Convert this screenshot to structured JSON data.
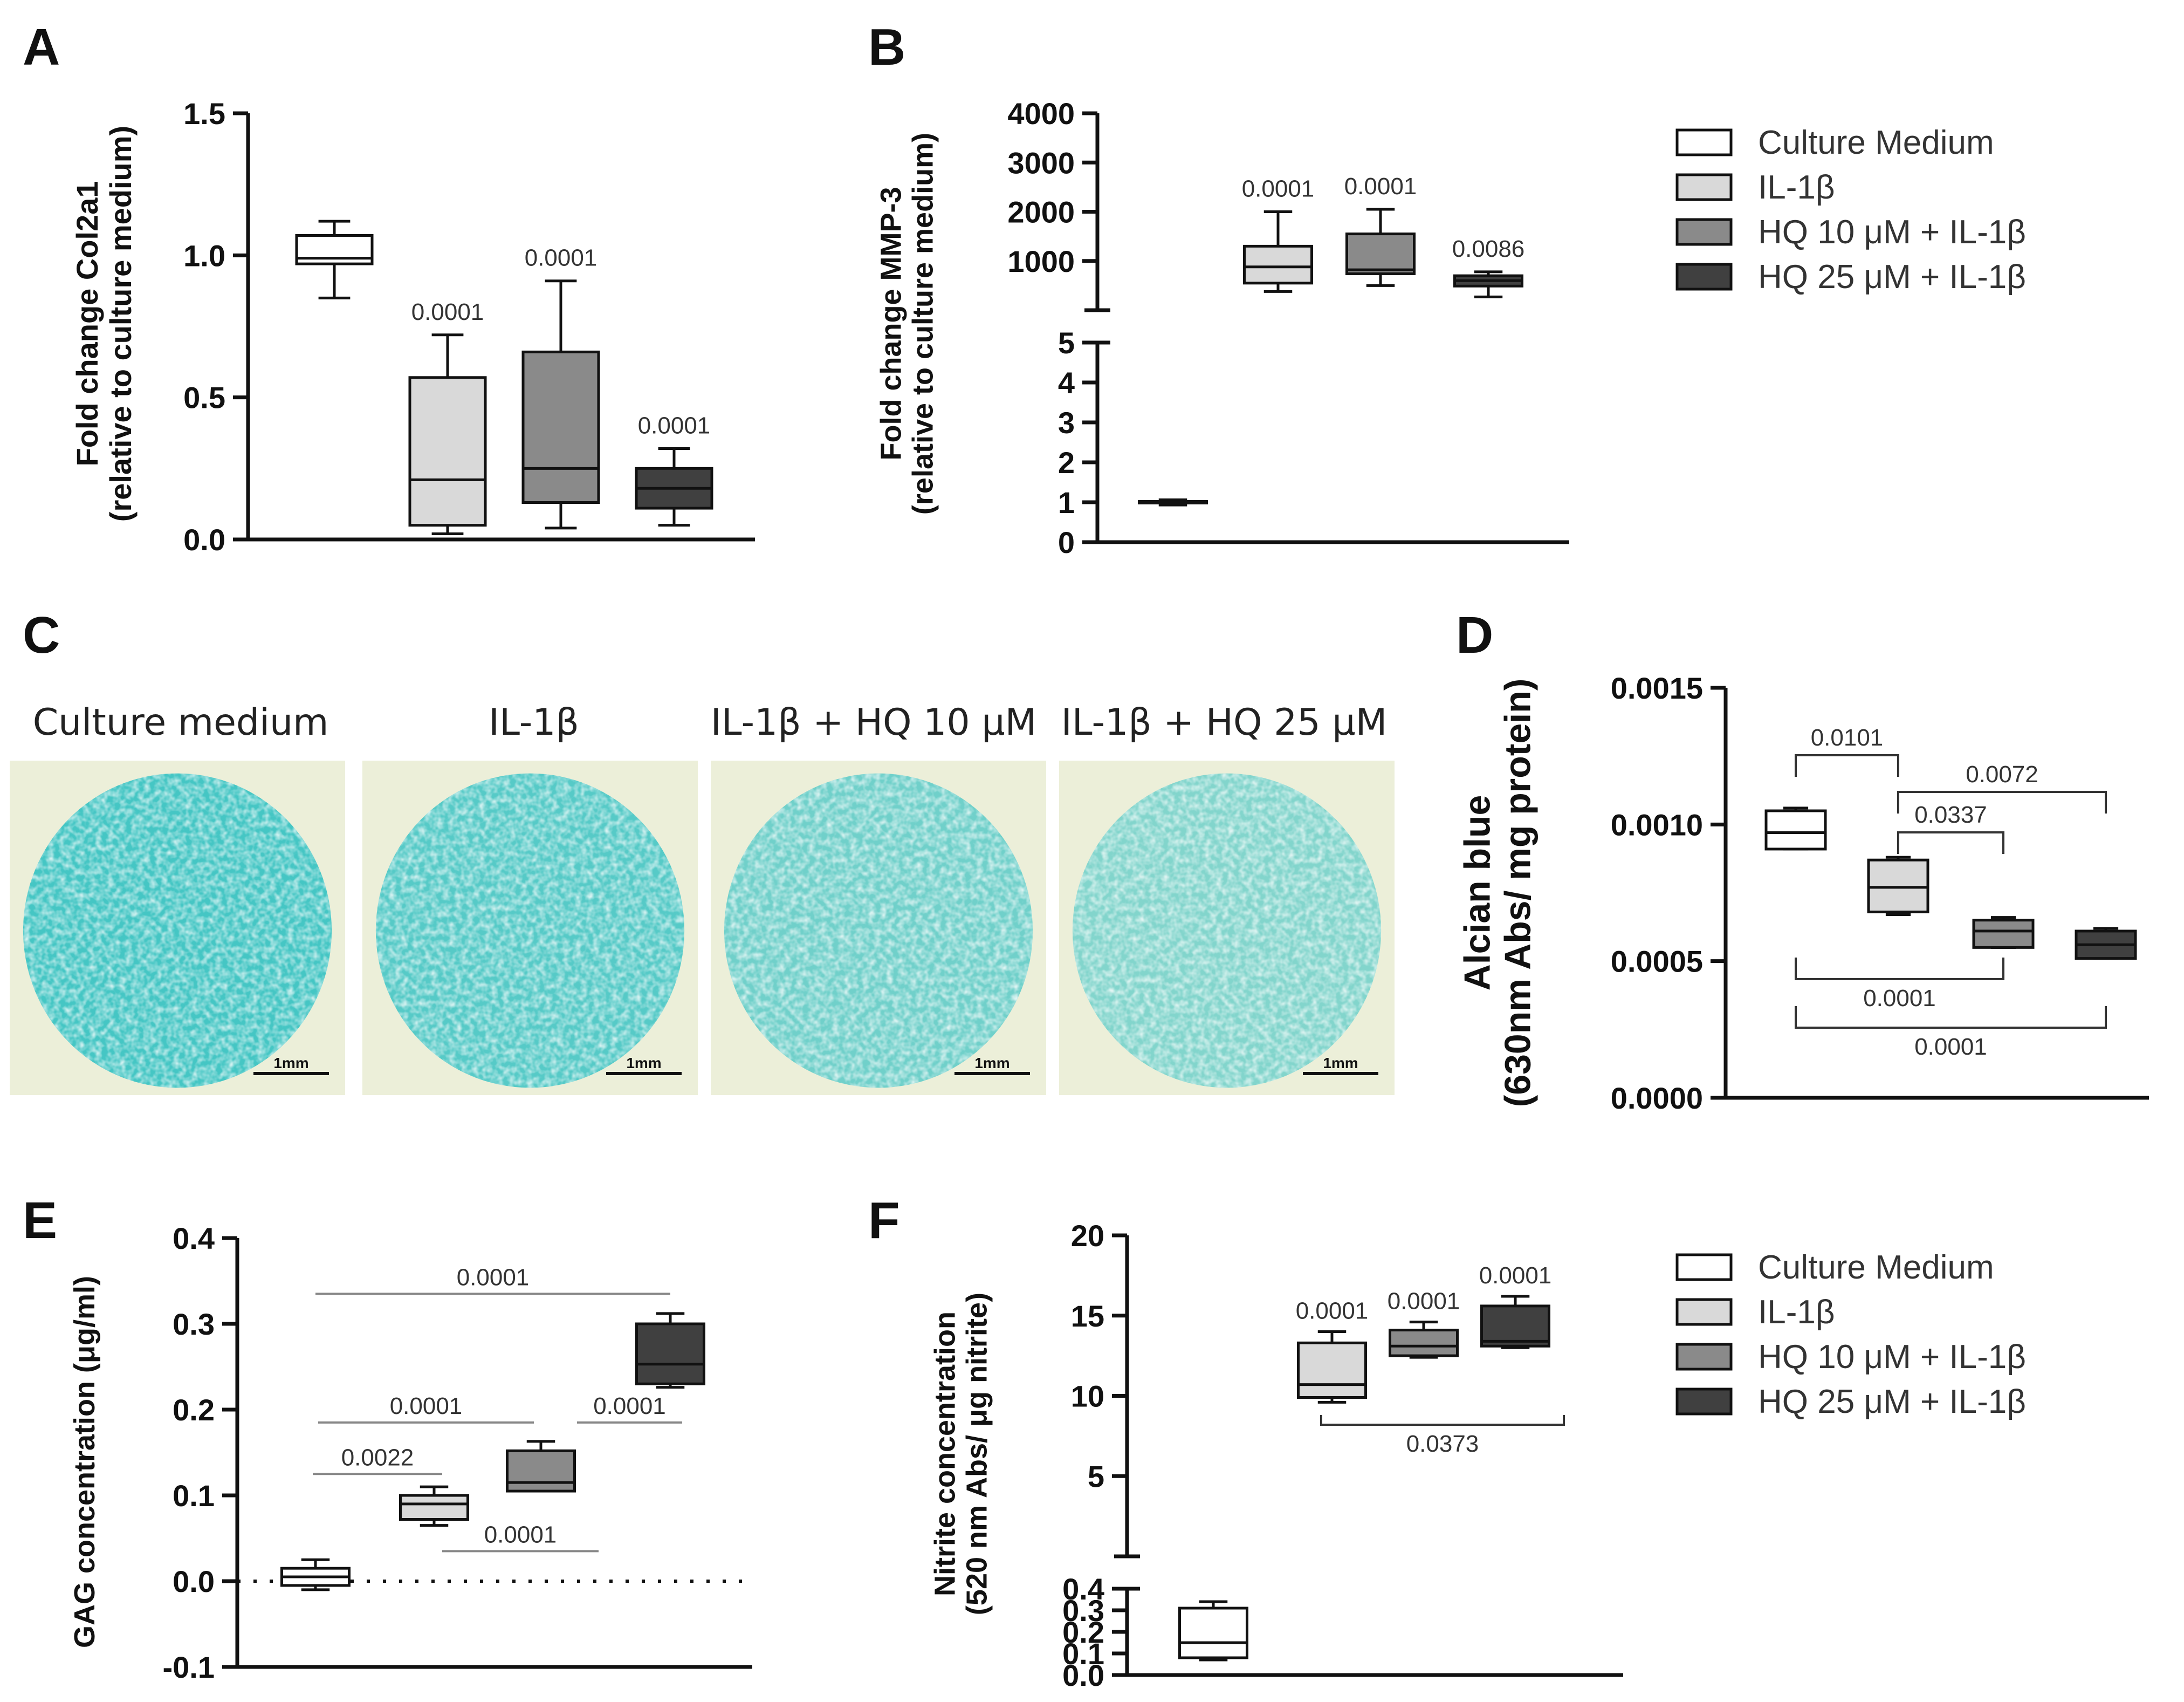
{
  "colors": {
    "culture_medium": "#ffffff",
    "il1b": "#d9d9d9",
    "hq10": "#8a8a8a",
    "hq25": "#404040",
    "alcian": "#3cc3c3",
    "alcian_bg": "#ecefd9"
  },
  "legend": [
    {
      "label": "Culture Medium",
      "color": "#ffffff"
    },
    {
      "label": "IL-1β",
      "color": "#d9d9d9"
    },
    {
      "label": "HQ 10 μM + IL-1β",
      "color": "#8a8a8a"
    },
    {
      "label": "HQ 25 μM + IL-1β",
      "color": "#404040"
    }
  ],
  "chart_data": [
    {
      "panel": "A",
      "type": "box",
      "ylabel_lines": [
        "Fold change Col2a1",
        "(relative to culture medium)"
      ],
      "ylim": [
        0,
        1.5
      ],
      "yticks": [
        "0.0",
        "0.5",
        "1.0",
        "1.5"
      ],
      "groups": [
        {
          "name": "Culture Medium",
          "min": 0.85,
          "q1": 0.97,
          "median": 0.99,
          "q3": 1.07,
          "max": 1.12,
          "label": ""
        },
        {
          "name": "IL-1β",
          "min": 0.02,
          "q1": 0.05,
          "median": 0.21,
          "q3": 0.57,
          "max": 0.72,
          "label": "0.0001"
        },
        {
          "name": "HQ 10 μM + IL-1β",
          "min": 0.04,
          "q1": 0.13,
          "median": 0.25,
          "q3": 0.66,
          "max": 0.91,
          "label": "0.0001"
        },
        {
          "name": "HQ 25 μM + IL-1β",
          "min": 0.05,
          "q1": 0.11,
          "median": 0.18,
          "q3": 0.25,
          "max": 0.32,
          "label": "0.0001"
        }
      ]
    },
    {
      "panel": "B",
      "type": "box",
      "ylabel_lines": [
        "Fold change MMP-3",
        "(relative to culture medium)"
      ],
      "broken_axis": true,
      "lower_ylim": [
        0,
        5
      ],
      "upper_ylim": [
        0,
        4000
      ],
      "lower_yticks": [
        "0",
        "1",
        "2",
        "3",
        "4",
        "5"
      ],
      "upper_yticks": [
        "1000",
        "2000",
        "3000",
        "4000"
      ],
      "groups": [
        {
          "name": "Culture Medium",
          "min": 0.93,
          "q1": 0.98,
          "median": 1.0,
          "q3": 1.02,
          "max": 1.06,
          "label": ""
        },
        {
          "name": "IL-1β",
          "min": 380,
          "q1": 550,
          "median": 880,
          "q3": 1300,
          "max": 2000,
          "label": "0.0001"
        },
        {
          "name": "HQ 10 μM + IL-1β",
          "min": 500,
          "q1": 740,
          "median": 820,
          "q3": 1550,
          "max": 2050,
          "label": "0.0001"
        },
        {
          "name": "HQ 25 μM + IL-1β",
          "min": 270,
          "q1": 490,
          "median": 600,
          "q3": 700,
          "max": 780,
          "label": "0.0086"
        }
      ]
    },
    {
      "panel": "D",
      "type": "box",
      "ylabel_lines": [
        "Alcian blue",
        "(630nm Abs/ mg protein)"
      ],
      "ylim": [
        0,
        0.0015
      ],
      "yticks": [
        "0.0000",
        "0.0005",
        "0.0010",
        "0.0015"
      ],
      "groups": [
        {
          "name": "Culture Medium",
          "min": 0.00091,
          "q1": 0.00091,
          "median": 0.00097,
          "q3": 0.00105,
          "max": 0.00106
        },
        {
          "name": "IL-1β",
          "min": 0.00067,
          "q1": 0.00068,
          "median": 0.00077,
          "q3": 0.00087,
          "max": 0.00088
        },
        {
          "name": "HQ 10 μM + IL-1β",
          "min": 0.00055,
          "q1": 0.00055,
          "median": 0.00061,
          "q3": 0.00065,
          "max": 0.00066
        },
        {
          "name": "HQ 25 μM + IL-1β",
          "min": 0.00051,
          "q1": 0.00051,
          "median": 0.00056,
          "q3": 0.00061,
          "max": 0.00062
        }
      ],
      "comparisons": [
        {
          "from": 0,
          "to": 1,
          "label": "0.0101",
          "side": "top"
        },
        {
          "from": 1,
          "to": 3,
          "label": "0.0072",
          "side": "top"
        },
        {
          "from": 1,
          "to": 2,
          "label": "0.0337",
          "side": "top"
        },
        {
          "from": 0,
          "to": 2,
          "label": "0.0001",
          "side": "bottom"
        },
        {
          "from": 0,
          "to": 3,
          "label": "0.0001",
          "side": "bottom"
        }
      ]
    },
    {
      "panel": "E",
      "type": "box",
      "ylabel_lines": [
        "GAG concentration (μg/ml)"
      ],
      "ylim": [
        -0.1,
        0.4
      ],
      "yticks": [
        "-0.1",
        "0.0",
        "0.1",
        "0.2",
        "0.3",
        "0.4"
      ],
      "zero_line": true,
      "groups": [
        {
          "name": "Culture Medium",
          "min": -0.01,
          "q1": -0.005,
          "median": 0.005,
          "q3": 0.015,
          "max": 0.025
        },
        {
          "name": "IL-1β",
          "min": 0.065,
          "q1": 0.072,
          "median": 0.09,
          "q3": 0.1,
          "max": 0.11
        },
        {
          "name": "HQ 10 μM + IL-1β",
          "min": 0.105,
          "q1": 0.105,
          "median": 0.115,
          "q3": 0.152,
          "max": 0.163
        },
        {
          "name": "HQ 25 μM + IL-1β",
          "min": 0.226,
          "q1": 0.23,
          "median": 0.253,
          "q3": 0.3,
          "max": 0.312
        }
      ],
      "comparisons": [
        {
          "from": 0,
          "to": 3,
          "label": "0.0001",
          "y": 0.335
        },
        {
          "from": 0,
          "to": 2,
          "label": "0.0001",
          "y": 0.185
        },
        {
          "from": 2,
          "to": 3,
          "label": "0.0001",
          "y": 0.185
        },
        {
          "from": 0,
          "to": 1,
          "label": "0.0022",
          "y": 0.125
        },
        {
          "from": 1,
          "to": 2,
          "label": "0.0001",
          "y": 0.035
        }
      ]
    },
    {
      "panel": "F",
      "type": "box",
      "ylabel_lines": [
        "Nitrite concentration",
        "(520 nm Abs/ μg nitrite)"
      ],
      "broken_axis": true,
      "lower_ylim": [
        0,
        0.4
      ],
      "upper_ylim": [
        0,
        20
      ],
      "lower_yticks": [
        "0.0",
        "0.1",
        "0.2",
        "0.3",
        "0.4"
      ],
      "upper_yticks": [
        "5",
        "10",
        "15",
        "20"
      ],
      "groups": [
        {
          "name": "Culture Medium",
          "min": 0.07,
          "q1": 0.08,
          "median": 0.15,
          "q3": 0.31,
          "max": 0.34,
          "label": ""
        },
        {
          "name": "IL-1β",
          "min": 9.6,
          "q1": 9.9,
          "median": 10.7,
          "q3": 13.3,
          "max": 14.0,
          "label": "0.0001"
        },
        {
          "name": "HQ 10 μM + IL-1β",
          "min": 12.4,
          "q1": 12.5,
          "median": 13.1,
          "q3": 14.1,
          "max": 14.6,
          "label": "0.0001"
        },
        {
          "name": "HQ 25 μM + IL-1β",
          "min": 13.0,
          "q1": 13.1,
          "median": 13.4,
          "q3": 15.6,
          "max": 16.2,
          "label": "0.0001"
        }
      ],
      "comparisons": [
        {
          "from": 1,
          "to": 3,
          "label": "0.0373",
          "side": "bottom",
          "y": 8.2
        }
      ]
    }
  ],
  "panel_c": {
    "letter": "C",
    "images": [
      {
        "title": "Culture medium",
        "scale_bar": "1mm",
        "stain_intensity": 0.95
      },
      {
        "title": "IL-1β",
        "scale_bar": "1mm",
        "stain_intensity": 0.85
      },
      {
        "title": "IL-1β + HQ 10 μM",
        "scale_bar": "1mm",
        "stain_intensity": 0.7
      },
      {
        "title": "IL-1β + HQ 25 μM",
        "scale_bar": "1mm",
        "stain_intensity": 0.6
      }
    ]
  }
}
